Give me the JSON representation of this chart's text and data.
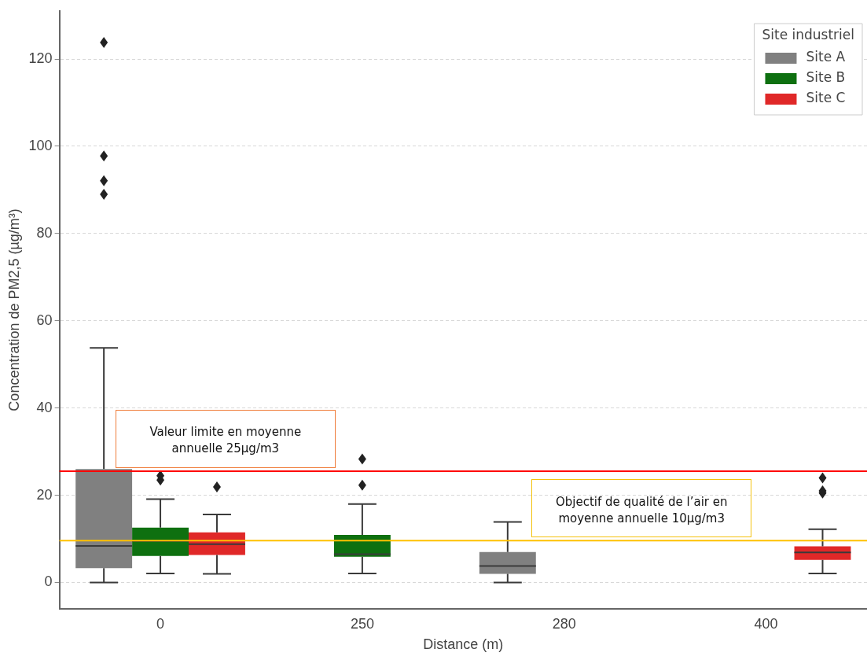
{
  "chart_data": {
    "type": "box",
    "xlabel": "Distance (m)",
    "ylabel": "Concentration de PM2,5 (µg/m³)",
    "legend_title": "Site industriel",
    "legend": "top right",
    "grid": "y",
    "marker": "diamond",
    "categories": [
      "0",
      "250",
      "280",
      "400"
    ],
    "ylim": [
      -6,
      131
    ],
    "yticks": [
      0,
      20,
      40,
      60,
      80,
      100,
      120
    ],
    "series": [
      {
        "name": "Site A",
        "color": "#808080",
        "boxes": [
          {
            "low": 0,
            "q1": 3.3,
            "median": 8.4,
            "q3": 26,
            "high": 53.8,
            "outliers": [
              89,
              92.1,
              97.8,
              123.8
            ]
          },
          null,
          {
            "low": 0,
            "q1": 2,
            "median": 3.8,
            "q3": 7,
            "high": 13.9
          },
          null
        ]
      },
      {
        "name": "Site B",
        "color": "#0e7010",
        "boxes": [
          {
            "low": 2.1,
            "q1": 6.1,
            "median": 9.5,
            "q3": 12.6,
            "high": 19.1,
            "outliers": [
              23.5,
              24.5
            ]
          },
          {
            "low": 2.1,
            "q1": 5.9,
            "median": 6.5,
            "q3": 10.9,
            "high": 18,
            "outliers": [
              22.3,
              28.3
            ]
          },
          null,
          null
        ]
      },
      {
        "name": "Site C",
        "color": "#e02828",
        "boxes": [
          {
            "low": 2,
            "q1": 6.3,
            "median": 8.8,
            "q3": 11.5,
            "high": 15.6,
            "outliers": [
              21.9
            ]
          },
          null,
          null,
          {
            "low": 2.1,
            "q1": 5.2,
            "median": 6.9,
            "q3": 8.3,
            "high": 12.2,
            "outliers": [
              20.5,
              21,
              24
            ]
          }
        ]
      }
    ],
    "ref_lines": [
      {
        "axis": "y",
        "value": 25.5,
        "label": "Valeur limite en moyenne annuelle 25µg/m3",
        "color": "#ff0000"
      },
      {
        "axis": "y",
        "value": 9.6,
        "label": "Objectif de qualité de l’air en moyenne annuelle 10µg/m3",
        "color": "#ffc000"
      }
    ]
  }
}
